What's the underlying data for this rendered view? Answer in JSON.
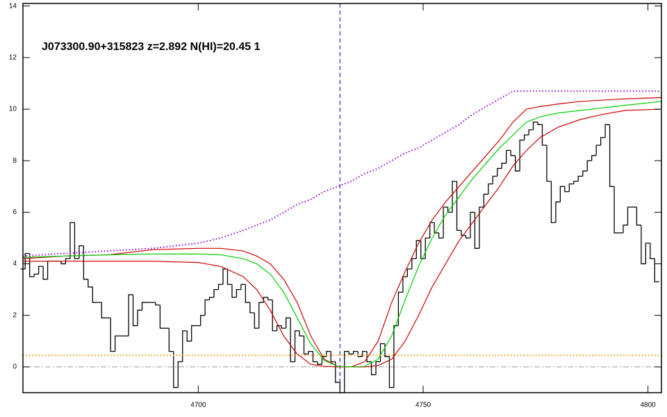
{
  "chart_data": {
    "type": "line",
    "title": "J073300.90+315823 z=2.892 N(HI)=20.45 1",
    "xlim": [
      4661,
      4803
    ],
    "ylim": [
      -1,
      14.1
    ],
    "xticks": [
      4700,
      4750,
      4800
    ],
    "yticks": [
      0,
      2,
      4,
      6,
      8,
      10,
      12,
      14
    ],
    "reference_x": 4731.5,
    "reference_y": 0,
    "flux": {
      "color": "#000000",
      "x": [
        4661,
        4662,
        4663,
        4664,
        4665,
        4666,
        4667,
        4668,
        4669,
        4670,
        4671,
        4672,
        4673,
        4674,
        4675,
        4676,
        4677,
        4678,
        4679,
        4680,
        4681,
        4682,
        4683,
        4684,
        4685,
        4686,
        4687,
        4688,
        4689,
        4690,
        4691,
        4692,
        4693,
        4694,
        4695,
        4696,
        4697,
        4698,
        4699,
        4700,
        4701,
        4702,
        4703,
        4704,
        4705,
        4706,
        4707,
        4708,
        4709,
        4710,
        4711,
        4712,
        4713,
        4714,
        4715,
        4716,
        4717,
        4718,
        4719,
        4720,
        4721,
        4722,
        4723,
        4724,
        4725,
        4726,
        4727,
        4728,
        4729,
        4730,
        4731,
        4732,
        4733,
        4734,
        4735,
        4736,
        4737,
        4738,
        4739,
        4740,
        4741,
        4742,
        4743,
        4744,
        4745,
        4746,
        4747,
        4748,
        4749,
        4750,
        4751,
        4752,
        4753,
        4754,
        4755,
        4756,
        4757,
        4758,
        4759,
        4760,
        4761,
        4762,
        4763,
        4764,
        4765,
        4766,
        4767,
        4768,
        4769,
        4770,
        4771,
        4772,
        4773,
        4774,
        4775,
        4776,
        4777,
        4778,
        4779,
        4780,
        4781,
        4782,
        4783,
        4784,
        4785,
        4786,
        4787,
        4788,
        4789,
        4790,
        4791,
        4792,
        4793,
        4794,
        4795,
        4796,
        4797,
        4798,
        4799,
        4800,
        4801,
        4802
      ],
      "values": [
        3.8,
        4.4,
        3.5,
        3.6,
        3.9,
        3.4,
        4.1,
        4.1,
        4.1,
        4.0,
        4.2,
        5.6,
        4.2,
        4.7,
        3.4,
        3.1,
        2.5,
        2.5,
        1.9,
        1.9,
        0.6,
        1.2,
        1.2,
        1.2,
        2.8,
        1.6,
        2.2,
        2.5,
        2.5,
        2.5,
        2.4,
        1.5,
        1.5,
        0.6,
        -0.8,
        0.2,
        1.4,
        1.0,
        1.6,
        1.6,
        2.0,
        2.6,
        2.7,
        3.0,
        3.2,
        3.8,
        3.2,
        2.7,
        3.0,
        3.2,
        2.5,
        2.1,
        1.5,
        2.5,
        2.7,
        2.6,
        1.4,
        1.6,
        1.5,
        1.9,
        0.2,
        1.4,
        1.2,
        0.5,
        0.6,
        0.2,
        0.1,
        0.4,
        0.6,
        0.2,
        -0.6,
        -1.0,
        0.6,
        0.5,
        0.6,
        0.4,
        0.6,
        0.2,
        -0.3,
        0.2,
        0.9,
        0.4,
        -0.8,
        1.6,
        2.9,
        3.5,
        3.8,
        4.2,
        4.9,
        4.2,
        5.0,
        5.6,
        5.2,
        5.0,
        6.2,
        6.0,
        7.2,
        5.3,
        5.1,
        5.0,
        6.0,
        4.6,
        6.2,
        6.7,
        7.1,
        7.4,
        7.7,
        7.9,
        8.4,
        8.2,
        7.6,
        8.8,
        9.0,
        9.2,
        9.5,
        9.4,
        8.6,
        7.2,
        5.6,
        6.4,
        7.0,
        6.8,
        7.1,
        7.2,
        7.4,
        7.6,
        8.0,
        8.2,
        8.6,
        8.9,
        9.4,
        7.0,
        5.2,
        5.2,
        5.5,
        6.2,
        6.2,
        5.5,
        4.0,
        4.8,
        4.2,
        3.3
      ]
    },
    "model_x": [
      4661,
      4670,
      4680,
      4690,
      4700,
      4705,
      4710,
      4713,
      4716,
      4719,
      4722,
      4725,
      4728,
      4731,
      4734,
      4737,
      4740,
      4743,
      4746,
      4749,
      4752,
      4755,
      4758,
      4761,
      4764,
      4767,
      4770,
      4773,
      4776,
      4780,
      4785,
      4790,
      4795,
      4803
    ],
    "series": [
      {
        "color": "#9400d3",
        "dash": "dot",
        "values": [
          4.3,
          4.4,
          4.5,
          4.6,
          4.8,
          5.0,
          5.3,
          5.5,
          5.7,
          6.0,
          6.3,
          6.5,
          6.8,
          7.0,
          7.2,
          7.5,
          7.7,
          8.0,
          8.3,
          8.5,
          8.8,
          9.1,
          9.4,
          9.8,
          10.1,
          10.4,
          10.7,
          10.7,
          10.7,
          10.7,
          10.7,
          10.7,
          10.7,
          10.7
        ]
      },
      {
        "color": "#ff8c00",
        "dash": "dot",
        "values": [
          0.45,
          0.45,
          0.45,
          0.45,
          0.45,
          0.45,
          0.45,
          0.45,
          0.45,
          0.45,
          0.45,
          0.45,
          0.45,
          0.45,
          0.45,
          0.45,
          0.45,
          0.45,
          0.45,
          0.45,
          0.45,
          0.45,
          0.45,
          0.45,
          0.45,
          0.45,
          0.45,
          0.45,
          0.45,
          0.45,
          0.45,
          0.45,
          0.45,
          0.45
        ]
      },
      {
        "color": "#cc0000",
        "values": [
          4.2,
          4.3,
          4.35,
          4.55,
          4.6,
          4.6,
          4.5,
          4.3,
          4.0,
          3.4,
          2.5,
          1.2,
          0.3,
          0.02,
          0,
          0.2,
          1.0,
          2.5,
          3.7,
          4.8,
          5.7,
          6.4,
          7.0,
          7.6,
          8.2,
          8.8,
          9.5,
          10.0,
          10.1,
          10.2,
          10.3,
          10.35,
          10.4,
          10.45
        ]
      },
      {
        "color": "#cc0000",
        "values": [
          4.1,
          4.1,
          4.1,
          4.1,
          4.05,
          3.9,
          3.5,
          3.0,
          2.2,
          1.2,
          0.5,
          0.1,
          0.02,
          0,
          0,
          0,
          0.05,
          0.3,
          1.0,
          2.0,
          3.1,
          4.0,
          4.9,
          5.6,
          6.3,
          7.0,
          7.8,
          8.4,
          8.9,
          9.3,
          9.6,
          9.8,
          9.95,
          10.0
        ]
      },
      {
        "color": "#00cc00",
        "values": [
          4.25,
          4.3,
          4.35,
          4.38,
          4.38,
          4.35,
          4.2,
          4.0,
          3.6,
          2.9,
          1.9,
          0.9,
          0.25,
          0.02,
          0,
          0.02,
          0.3,
          1.2,
          2.6,
          3.9,
          5.0,
          5.9,
          6.6,
          7.3,
          7.9,
          8.5,
          9.0,
          9.5,
          9.7,
          9.85,
          9.95,
          10.05,
          10.15,
          10.3
        ]
      }
    ]
  }
}
